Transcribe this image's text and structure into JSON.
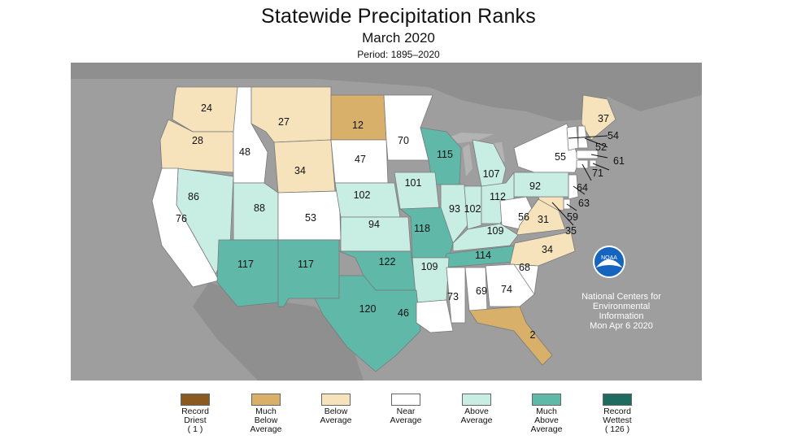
{
  "title": "Statewide Precipitation Ranks",
  "subtitle": "March 2020",
  "period": "Period: 1895–2020",
  "colors": {
    "background": "#9e9e9e",
    "record_driest": "#8b5a1e",
    "much_below": "#d8b06a",
    "below": "#f6e3bc",
    "near": "#ffffff",
    "above": "#c8ede3",
    "much_above": "#5fb8a8",
    "record_wettest": "#1f6b60"
  },
  "credit": {
    "line1": "National Centers for",
    "line2": "Environmental",
    "line3": "Information",
    "date": "Mon Apr  6 2020",
    "logo": "NOAA"
  },
  "legend": [
    {
      "label": "Record\nDriest\n( 1 )",
      "color": "#8b5a1e"
    },
    {
      "label": "Much\nBelow\nAverage",
      "color": "#d8b06a"
    },
    {
      "label": "Below\nAverage",
      "color": "#f6e3bc"
    },
    {
      "label": "Near\nAverage",
      "color": "#ffffff"
    },
    {
      "label": "Above\nAverage",
      "color": "#c8ede3"
    },
    {
      "label": "Much\nAbove\nAverage",
      "color": "#5fb8a8"
    },
    {
      "label": "Record\nWettest\n( 126 )",
      "color": "#1f6b60"
    }
  ],
  "states": [
    {
      "state": "WA",
      "rank": 24,
      "category": "below"
    },
    {
      "state": "OR",
      "rank": 28,
      "category": "below"
    },
    {
      "state": "ID",
      "rank": 48,
      "category": "near"
    },
    {
      "state": "MT",
      "rank": 27,
      "category": "below"
    },
    {
      "state": "ND",
      "rank": 12,
      "category": "much_below"
    },
    {
      "state": "MN",
      "rank": 70,
      "category": "near"
    },
    {
      "state": "WY",
      "rank": 34,
      "category": "below"
    },
    {
      "state": "SD",
      "rank": 47,
      "category": "near"
    },
    {
      "state": "WI",
      "rank": 115,
      "category": "much_above"
    },
    {
      "state": "MI",
      "rank": 107,
      "category": "above"
    },
    {
      "state": "NY",
      "rank": 55,
      "category": "near"
    },
    {
      "state": "ME",
      "rank": 37,
      "category": "below"
    },
    {
      "state": "VT",
      "rank": 54,
      "category": "near"
    },
    {
      "state": "NH",
      "rank": 52,
      "category": "near"
    },
    {
      "state": "MA",
      "rank": 61,
      "category": "near"
    },
    {
      "state": "RI",
      "rank": 71,
      "category": "near"
    },
    {
      "state": "CT",
      "rank": 64,
      "category": "near"
    },
    {
      "state": "NJ",
      "rank": 63,
      "category": "near"
    },
    {
      "state": "DE",
      "rank": 59,
      "category": "near"
    },
    {
      "state": "MD",
      "rank": 35,
      "category": "below"
    },
    {
      "state": "PA",
      "rank": 92,
      "category": "above"
    },
    {
      "state": "NV",
      "rank": 86,
      "category": "above"
    },
    {
      "state": "UT",
      "rank": 88,
      "category": "above"
    },
    {
      "state": "CA",
      "rank": 76,
      "category": "near"
    },
    {
      "state": "CO",
      "rank": 53,
      "category": "near"
    },
    {
      "state": "NE",
      "rank": 102,
      "category": "above"
    },
    {
      "state": "IA",
      "rank": 101,
      "category": "above"
    },
    {
      "state": "IL",
      "rank": 93,
      "category": "above"
    },
    {
      "state": "IN",
      "rank": 102,
      "category": "above"
    },
    {
      "state": "OH",
      "rank": 112,
      "category": "above"
    },
    {
      "state": "WV",
      "rank": 56,
      "category": "near"
    },
    {
      "state": "VA",
      "rank": 31,
      "category": "below"
    },
    {
      "state": "KS",
      "rank": 94,
      "category": "above"
    },
    {
      "state": "MO",
      "rank": 118,
      "category": "much_above"
    },
    {
      "state": "KY",
      "rank": 109,
      "category": "above"
    },
    {
      "state": "TN",
      "rank": 114,
      "category": "much_above"
    },
    {
      "state": "NC",
      "rank": 34,
      "category": "below"
    },
    {
      "state": "AZ",
      "rank": 117,
      "category": "much_above"
    },
    {
      "state": "NM",
      "rank": 117,
      "category": "much_above"
    },
    {
      "state": "OK",
      "rank": 122,
      "category": "much_above"
    },
    {
      "state": "AR",
      "rank": 109,
      "category": "above"
    },
    {
      "state": "SC",
      "rank": 68,
      "category": "near"
    },
    {
      "state": "TX",
      "rank": 120,
      "category": "much_above"
    },
    {
      "state": "LA",
      "rank": 46,
      "category": "near"
    },
    {
      "state": "MS",
      "rank": 73,
      "category": "near"
    },
    {
      "state": "AL",
      "rank": 69,
      "category": "near"
    },
    {
      "state": "GA",
      "rank": 74,
      "category": "near"
    },
    {
      "state": "FL",
      "rank": 2,
      "category": "much_below"
    }
  ]
}
